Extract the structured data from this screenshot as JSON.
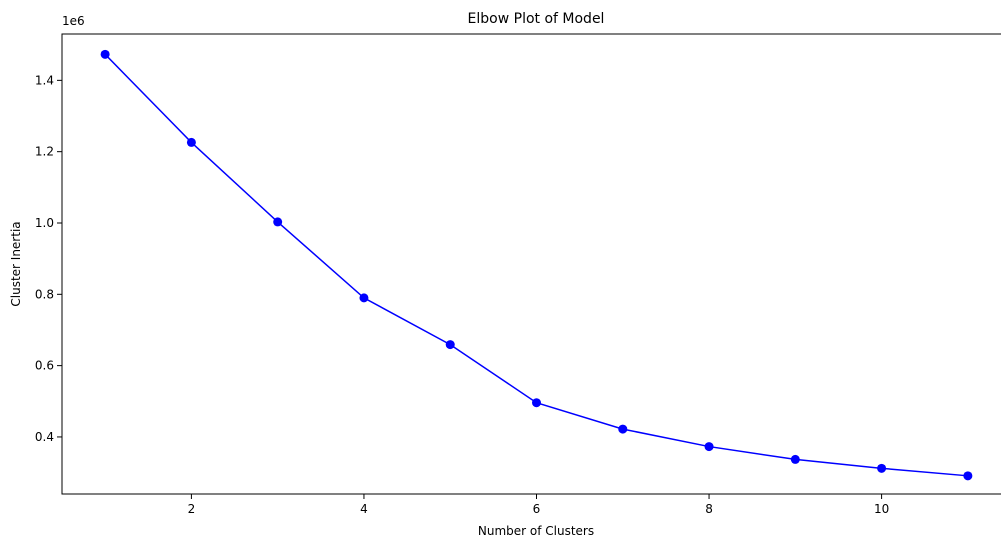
{
  "chart_data": {
    "type": "line",
    "title": "Elbow Plot of Model",
    "xlabel": "Number of Clusters",
    "ylabel": "Cluster Inertia",
    "y_offset_label": "1e6",
    "xlim": [
      0.5,
      11.5
    ],
    "ylim": [
      0.24,
      1.53
    ],
    "x_ticks": [
      2,
      4,
      6,
      8,
      10
    ],
    "x_tick_labels": [
      "2",
      "4",
      "6",
      "8",
      "10"
    ],
    "y_ticks": [
      0.4,
      0.6,
      0.8,
      1.0,
      1.2,
      1.4
    ],
    "y_tick_labels": [
      "0.4",
      "0.6",
      "0.8",
      "1.0",
      "1.2",
      "1.4"
    ],
    "grid": false,
    "series": [
      {
        "color": "#0000ff",
        "marker": "circle",
        "x": [
          1,
          2,
          3,
          4,
          5,
          6,
          7,
          8,
          9,
          10,
          11
        ],
        "y": [
          1.473,
          1.226,
          1.003,
          0.79,
          0.659,
          0.496,
          0.422,
          0.373,
          0.337,
          0.312,
          0.291
        ]
      }
    ]
  }
}
